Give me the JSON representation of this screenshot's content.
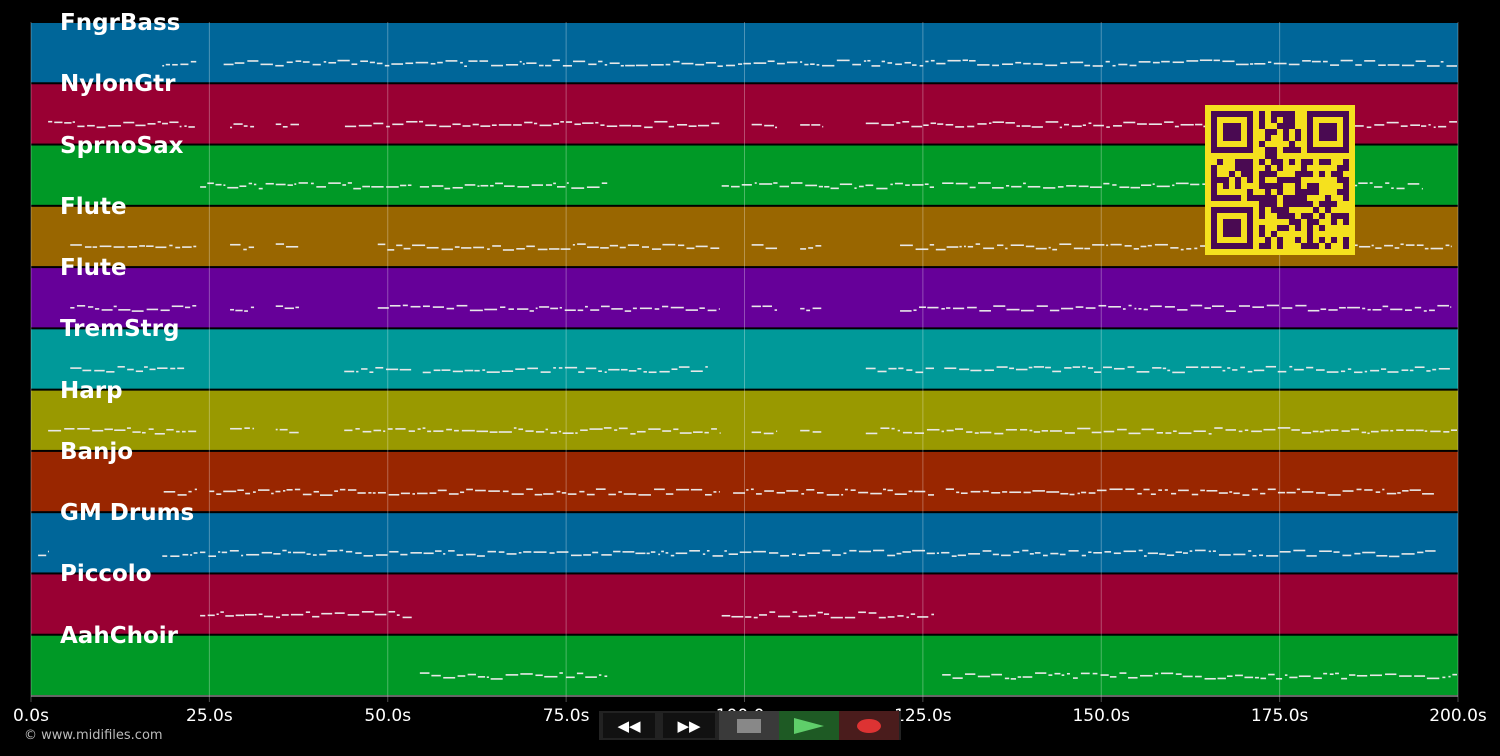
{
  "timeline": {
    "start_s": 0,
    "end_s": 200,
    "tick_labels": [
      "0.0s",
      "25.0s",
      "50.0s",
      "75.0s",
      "100.0s",
      "125.0s",
      "150.0s",
      "175.0s",
      "200.0s"
    ]
  },
  "tracks": [
    {
      "name": "FngrBass",
      "color": "#006699",
      "spans": [
        [
          18.4,
          23.3
        ],
        [
          27,
          200
        ]
      ]
    },
    {
      "name": "NylonGtr",
      "color": "#990033",
      "spans": [
        [
          2.4,
          23.3
        ],
        [
          27.9,
          31.4
        ],
        [
          34.3,
          37.7
        ],
        [
          44,
          96.6
        ],
        [
          101,
          104.7
        ],
        [
          107.8,
          110.9
        ],
        [
          117,
          200
        ]
      ]
    },
    {
      "name": "SprnoSax",
      "color": "#009926",
      "spans": [
        [
          23.7,
          53.5
        ],
        [
          54.5,
          80.9
        ],
        [
          96.8,
          126.7
        ],
        [
          127.7,
          195
        ]
      ]
    },
    {
      "name": "Flute",
      "color": "#996600",
      "spans": [
        [
          5.5,
          23.3
        ],
        [
          27.9,
          31.4
        ],
        [
          34.3,
          37.7
        ],
        [
          48.6,
          96.6
        ],
        [
          101,
          104.7
        ],
        [
          107.8,
          110.9
        ],
        [
          121.8,
          199
        ]
      ]
    },
    {
      "name": "Flute",
      "color": "#660099",
      "spans": [
        [
          5.5,
          23.3
        ],
        [
          27.9,
          31.4
        ],
        [
          34.3,
          37.7
        ],
        [
          48.6,
          96.6
        ],
        [
          101,
          104.7
        ],
        [
          107.8,
          110.9
        ],
        [
          121.8,
          199
        ]
      ]
    },
    {
      "name": "TremStrg",
      "color": "#009999",
      "spans": [
        [
          5.5,
          21.6
        ],
        [
          43.9,
          53.5
        ],
        [
          54.9,
          79.5
        ],
        [
          79.5,
          95
        ],
        [
          117,
          126.7
        ],
        [
          128,
          149
        ],
        [
          149,
          167
        ],
        [
          167,
          199
        ]
      ]
    },
    {
      "name": "Harp",
      "color": "#999900",
      "spans": [
        [
          2.4,
          23.3
        ],
        [
          27.9,
          31.4
        ],
        [
          34.3,
          37.7
        ],
        [
          43.9,
          96.6
        ],
        [
          101,
          104.7
        ],
        [
          107.8,
          110.9
        ],
        [
          117,
          200
        ]
      ]
    },
    {
      "name": "Banjo",
      "color": "#992600",
      "spans": [
        [
          18.6,
          23.4
        ],
        [
          25,
          96.6
        ],
        [
          98.4,
          126.7
        ],
        [
          128.2,
          197
        ]
      ]
    },
    {
      "name": "GM Drums",
      "color": "#006699",
      "spans": [
        [
          1,
          2.4
        ],
        [
          18.4,
          197
        ]
      ]
    },
    {
      "name": "Piccolo",
      "color": "#990033",
      "spans": [
        [
          23.7,
          53.5
        ],
        [
          96.8,
          126.7
        ]
      ]
    },
    {
      "name": "AahChoir",
      "color": "#009926",
      "spans": [
        [
          54.5,
          80.9
        ],
        [
          127.7,
          200
        ]
      ]
    }
  ],
  "controls": {
    "rewind": "rewind-icon",
    "forward": "fast-forward-icon",
    "stop": "stop-icon",
    "play": "play-icon",
    "record": "record-icon"
  },
  "qr": {
    "fg": "#4a0a52",
    "bg": "#f5e11e"
  },
  "copyright": "© www.midifiles.com"
}
